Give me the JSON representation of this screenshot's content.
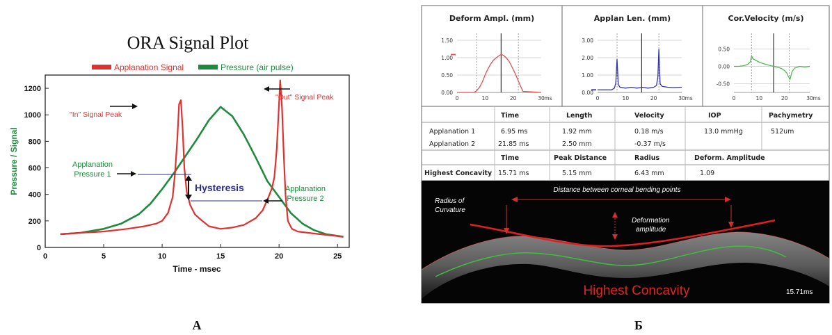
{
  "panel_a": {
    "label": "А",
    "annotations": {
      "in_peak": "\"In\" Signal Peak",
      "out_peak": "\"Out\" Signal Peak",
      "ap1_line1": "Applanation",
      "ap1_line2": "Pressure 1",
      "ap2_line1": "Applanation",
      "ap2_line2": "Pressure 2",
      "hysteresis": "Hysteresis"
    },
    "colors": {
      "applanation": "#e03131",
      "pressure": "#1e8a3c",
      "hysteresis": "#2c2c8c"
    }
  },
  "panel_b": {
    "label": "Б",
    "table": {
      "header1": [
        "Time",
        "Length",
        "Velocity",
        "IOP",
        "Pachymetry"
      ],
      "rows1": [
        [
          "Applanation  1",
          "6.95 ms",
          "1.92  mm",
          "0.18 m/s",
          "13.0 mmHg",
          "512um"
        ],
        [
          "Applanation  2",
          "21.85 ms",
          "2.50  mm",
          "-0.37 m/s",
          "",
          ""
        ]
      ],
      "header2": [
        "Time",
        "Peak Distance",
        "Radius",
        "Deform. Amplitude"
      ],
      "row2": [
        "Highest Concavity",
        "15.71 ms",
        "5.15 mm",
        "6.43 mm",
        "1.09"
      ]
    },
    "image": {
      "distance_label": "Distance  between  corneal bending points",
      "radius_line1": "Radius of",
      "radius_line2": "Curvature",
      "deform_line1": "Deformation",
      "deform_line2": "amplitude",
      "title": "Highest Concavity",
      "time": "15.71ms"
    }
  },
  "chart_data": [
    {
      "type": "line",
      "title": "ORA Signal Plot",
      "xlabel": "Time - msec",
      "ylabel": "Pressure / Signal",
      "xlim": [
        0,
        26
      ],
      "ylim": [
        0,
        1300
      ],
      "xticks": [
        0,
        5,
        10,
        15,
        20,
        25
      ],
      "yticks": [
        0,
        200,
        400,
        600,
        800,
        1000,
        1200
      ],
      "series": [
        {
          "name": "Applanation Signal",
          "color": "#e03131",
          "x": [
            1.3,
            3,
            5,
            7,
            8.5,
            9.5,
            10,
            10.5,
            10.9,
            11.1,
            11.3,
            11.45,
            11.6,
            11.75,
            11.9,
            12.1,
            12.4,
            12.8,
            13.3,
            14,
            15,
            16,
            17,
            18,
            18.6,
            19.1,
            19.4,
            19.6,
            19.8,
            19.95,
            20.1,
            20.25,
            20.4,
            20.55,
            20.75,
            21.1,
            21.6,
            22.5,
            24,
            25.5
          ],
          "y": [
            100,
            110,
            120,
            140,
            160,
            180,
            200,
            260,
            380,
            560,
            820,
            1080,
            1110,
            900,
            600,
            420,
            320,
            250,
            210,
            160,
            140,
            150,
            170,
            220,
            280,
            380,
            450,
            530,
            740,
            1000,
            1260,
            1050,
            700,
            400,
            200,
            140,
            120,
            110,
            95,
            80
          ]
        },
        {
          "name": "Pressure (air pulse)",
          "color": "#1e8a3c",
          "x": [
            1.3,
            3,
            5,
            6.5,
            8,
            9,
            10,
            11,
            12,
            13,
            14,
            15,
            16,
            17,
            18,
            19,
            20,
            21,
            22,
            23,
            24,
            25.5
          ],
          "y": [
            100,
            110,
            140,
            180,
            250,
            330,
            440,
            560,
            690,
            820,
            960,
            1060,
            990,
            850,
            680,
            500,
            380,
            260,
            180,
            130,
            100,
            80
          ]
        }
      ]
    },
    {
      "type": "line",
      "title": "Deform Ampl. (mm)",
      "xlabel": "ms",
      "ylim": [
        0,
        1.5
      ],
      "xlim": [
        0,
        30
      ],
      "yticks": [
        "1.50",
        "1.00",
        "0.50",
        "0.00"
      ],
      "xticks": [
        "0",
        "10",
        "20",
        "30"
      ],
      "series": [
        {
          "color": "#e05050",
          "x": [
            0,
            5,
            6,
            7,
            8,
            9,
            10,
            11,
            12,
            13,
            14,
            15,
            15.7,
            16.5,
            17.5,
            18.5,
            19.5,
            20.5,
            21.5,
            22.5,
            23.5,
            30
          ],
          "y": [
            0,
            0,
            0,
            0.05,
            0.15,
            0.3,
            0.5,
            0.68,
            0.82,
            0.93,
            1.0,
            1.06,
            1.09,
            1.07,
            1.0,
            0.9,
            0.75,
            0.58,
            0.4,
            0.2,
            0.03,
            0
          ]
        }
      ]
    },
    {
      "type": "line",
      "title": "Applan Len. (mm)",
      "xlabel": "ms",
      "ylim": [
        0,
        3
      ],
      "xlim": [
        0,
        30
      ],
      "yticks": [
        "3.00",
        "2.00",
        "1.00",
        "0.00"
      ],
      "xticks": [
        "0",
        "10",
        "20",
        "30"
      ],
      "series": [
        {
          "color": "#3333aa",
          "x": [
            0,
            5,
            6,
            6.5,
            6.95,
            7.4,
            8,
            10,
            12,
            14,
            16,
            18,
            20,
            21,
            21.5,
            21.85,
            22.3,
            23,
            25,
            27,
            30
          ],
          "y": [
            0.15,
            0.15,
            0.25,
            0.55,
            1.92,
            0.45,
            0.3,
            0.25,
            0.3,
            0.25,
            0.3,
            0.25,
            0.3,
            0.4,
            0.9,
            2.5,
            0.5,
            0.35,
            0.3,
            0.28,
            0.3
          ]
        }
      ]
    },
    {
      "type": "line",
      "title": "Cor.Velocity (m/s)",
      "xlabel": "ms",
      "ylim": [
        -0.75,
        0.75
      ],
      "xlim": [
        0,
        30
      ],
      "yticks": [
        "0.50",
        "0.00",
        "-0.50"
      ],
      "xticks": [
        "0",
        "10",
        "20",
        "30"
      ],
      "series": [
        {
          "color": "#55b555",
          "x": [
            0,
            2,
            4,
            5.5,
            6.5,
            7,
            7.5,
            8.5,
            10,
            12,
            14,
            15.7,
            17,
            18,
            19,
            20,
            21,
            21.6,
            22.2,
            23,
            24,
            26,
            28,
            30
          ],
          "y": [
            0.0,
            0.0,
            0.02,
            0.06,
            0.13,
            0.3,
            0.22,
            0.18,
            0.12,
            0.07,
            0.03,
            0.0,
            -0.02,
            -0.04,
            -0.07,
            -0.12,
            -0.2,
            -0.3,
            -0.37,
            -0.15,
            -0.05,
            0.0,
            -0.02,
            0.0
          ]
        }
      ]
    }
  ]
}
